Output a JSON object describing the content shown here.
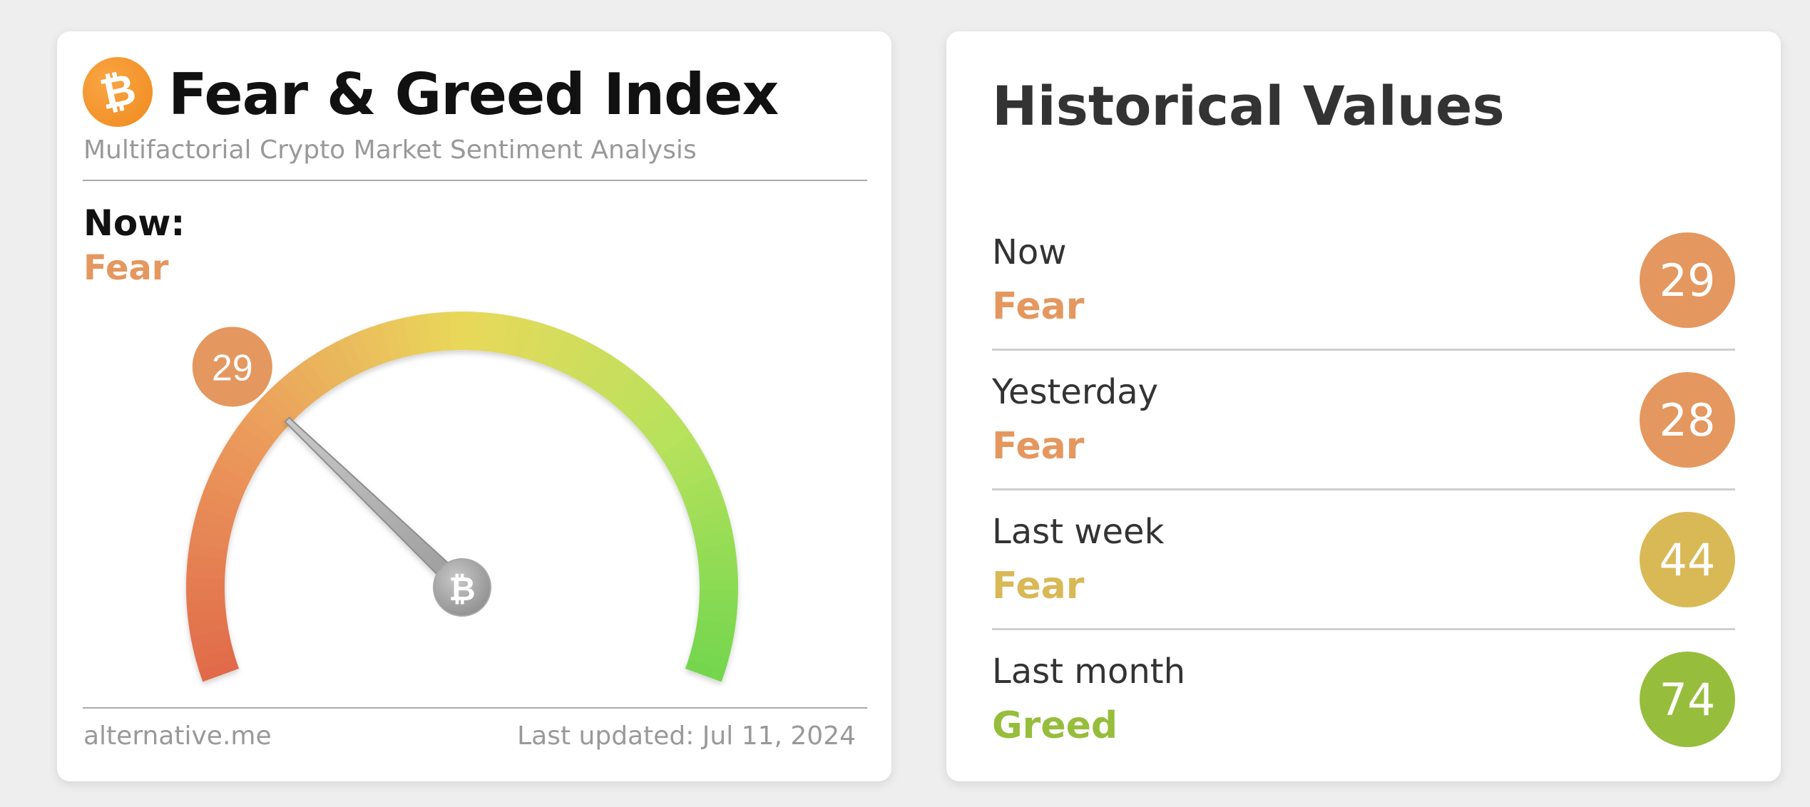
{
  "gauge_card": {
    "logo_glyph": "₿",
    "title": "Fear & Greed Index",
    "subtitle": "Multifactorial Crypto Market Sentiment Analysis",
    "now_label": "Now:",
    "now_status": "Fear",
    "now_value": "29",
    "gauge_value": 29,
    "gauge_min": 0,
    "gauge_max": 100,
    "hub_glyph": "₿",
    "footer_site": "alternative.me",
    "footer_updated": "Last updated: Jul 11, 2024"
  },
  "history_card": {
    "title": "Historical Values",
    "rows": [
      {
        "period": "Now",
        "status": "Fear",
        "value": "29",
        "color": "#e4975e"
      },
      {
        "period": "Yesterday",
        "status": "Fear",
        "value": "28",
        "color": "#e4975e"
      },
      {
        "period": "Last week",
        "status": "Fear",
        "value": "44",
        "color": "#d9b856"
      },
      {
        "period": "Last month",
        "status": "Greed",
        "value": "74",
        "color": "#97bd3c"
      }
    ]
  },
  "colors": {
    "fear": "#e4975e",
    "neutral_fear": "#d9b856",
    "greed": "#97bd3c",
    "extreme_fear": "#e06a4a",
    "extreme_greed": "#72d64e"
  }
}
